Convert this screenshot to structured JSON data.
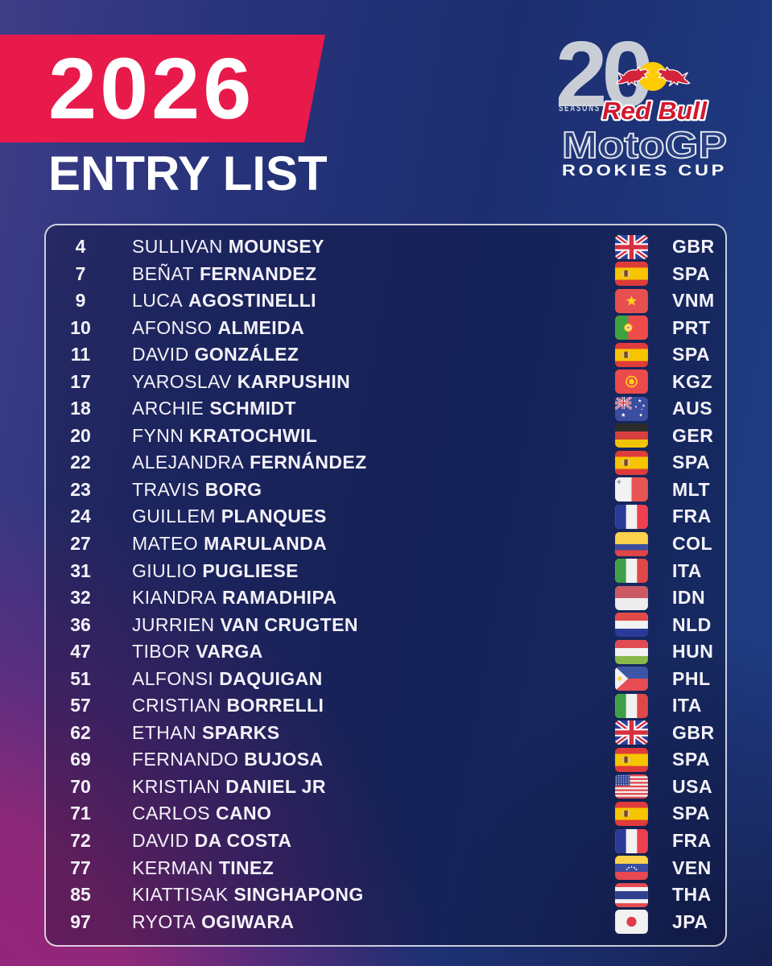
{
  "header": {
    "year": "2026",
    "title": "ENTRY LIST"
  },
  "logo": {
    "seasons_number": "20",
    "seasons_label": "SEASONS",
    "brand": "Red Bull",
    "series": "MotoGP",
    "cup": "ROOKIES CUP"
  },
  "colors": {
    "banner_red": "#e8194b",
    "bg_blue_top_right": "#1f3e86",
    "bg_indigo_top_left": "#3f3d87",
    "bg_magenta_bottom_left": "#8e2878",
    "panel_border": "#ffffff",
    "redbull_red": "#d2243a",
    "sun_yellow": "#ffcb05",
    "seasons_gray": "#c9cdd6",
    "row_text": "#f4f2f9"
  },
  "entries": [
    {
      "number": "4",
      "first_name": "SULLIVAN",
      "last_name": "MOUNSEY",
      "country_code": "GBR",
      "flag": "gbr"
    },
    {
      "number": "7",
      "first_name": "BEÑAT",
      "last_name": "FERNANDEZ",
      "country_code": "SPA",
      "flag": "spa"
    },
    {
      "number": "9",
      "first_name": "LUCA",
      "last_name": "AGOSTINELLI",
      "country_code": "VNM",
      "flag": "vnm"
    },
    {
      "number": "10",
      "first_name": "AFONSO",
      "last_name": "ALMEIDA",
      "country_code": "PRT",
      "flag": "prt"
    },
    {
      "number": "11",
      "first_name": "DAVID",
      "last_name": "GONZÁLEZ",
      "country_code": "SPA",
      "flag": "spa"
    },
    {
      "number": "17",
      "first_name": "YAROSLAV",
      "last_name": "KARPUSHIN",
      "country_code": "KGZ",
      "flag": "kgz"
    },
    {
      "number": "18",
      "first_name": "ARCHIE",
      "last_name": "SCHMIDT",
      "country_code": "AUS",
      "flag": "aus"
    },
    {
      "number": "20",
      "first_name": "FYNN",
      "last_name": "KRATOCHWIL",
      "country_code": "GER",
      "flag": "ger"
    },
    {
      "number": "22",
      "first_name": "ALEJANDRA",
      "last_name": "FERNÁNDEZ",
      "country_code": "SPA",
      "flag": "spa"
    },
    {
      "number": "23",
      "first_name": "TRAVIS",
      "last_name": "BORG",
      "country_code": "MLT",
      "flag": "mlt"
    },
    {
      "number": "24",
      "first_name": "GUILLEM",
      "last_name": "PLANQUES",
      "country_code": "FRA",
      "flag": "fra"
    },
    {
      "number": "27",
      "first_name": "MATEO",
      "last_name": "MARULANDA",
      "country_code": "COL",
      "flag": "col"
    },
    {
      "number": "31",
      "first_name": "GIULIO",
      "last_name": "PUGLIESE",
      "country_code": "ITA",
      "flag": "ita"
    },
    {
      "number": "32",
      "first_name": "KIANDRA",
      "last_name": "RAMADHIPA",
      "country_code": "IDN",
      "flag": "idn"
    },
    {
      "number": "36",
      "first_name": "JURRIEN",
      "last_name": "VAN CRUGTEN",
      "country_code": "NLD",
      "flag": "nld"
    },
    {
      "number": "47",
      "first_name": "TIBOR",
      "last_name": "VARGA",
      "country_code": "HUN",
      "flag": "hun"
    },
    {
      "number": "51",
      "first_name": "ALFONSI",
      "last_name": "DAQUIGAN",
      "country_code": "PHL",
      "flag": "phl"
    },
    {
      "number": "57",
      "first_name": "CRISTIAN",
      "last_name": "BORRELLI",
      "country_code": "ITA",
      "flag": "ita"
    },
    {
      "number": "62",
      "first_name": "ETHAN",
      "last_name": "SPARKS",
      "country_code": "GBR",
      "flag": "gbr"
    },
    {
      "number": "69",
      "first_name": "FERNANDO",
      "last_name": "BUJOSA",
      "country_code": "SPA",
      "flag": "spa"
    },
    {
      "number": "70",
      "first_name": "KRISTIAN",
      "last_name": "DANIEL JR",
      "country_code": "USA",
      "flag": "usa"
    },
    {
      "number": "71",
      "first_name": "CARLOS",
      "last_name": "CANO",
      "country_code": "SPA",
      "flag": "spa"
    },
    {
      "number": "72",
      "first_name": "DAVID",
      "last_name": "DA COSTA",
      "country_code": "FRA",
      "flag": "fra"
    },
    {
      "number": "77",
      "first_name": "KERMAN",
      "last_name": "TINEZ",
      "country_code": "VEN",
      "flag": "ven"
    },
    {
      "number": "85",
      "first_name": "KIATTISAK",
      "last_name": "SINGHAPONG",
      "country_code": "THA",
      "flag": "tha"
    },
    {
      "number": "97",
      "first_name": "RYOTA",
      "last_name": "OGIWARA",
      "country_code": "JPA",
      "flag": "jpa"
    }
  ]
}
